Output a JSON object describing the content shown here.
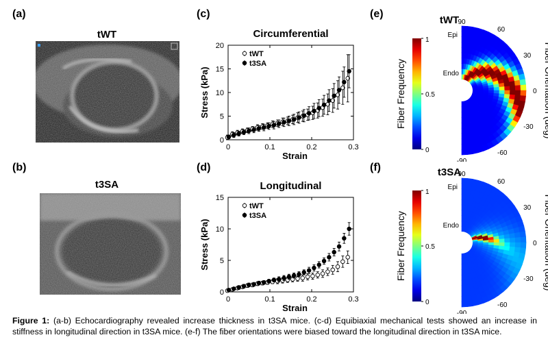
{
  "panels": {
    "a": {
      "label": "(a)",
      "title": "tWT"
    },
    "b": {
      "label": "(b)",
      "title": "t3SA"
    },
    "c": {
      "label": "(c)"
    },
    "d": {
      "label": "(d)"
    },
    "e": {
      "label": "(e)",
      "title": "tWT"
    },
    "f": {
      "label": "(f)",
      "title": "t3SA"
    }
  },
  "polar": {
    "cbar_label": "Fiber Frequency",
    "cbar_ticks": [
      "1",
      "0.5",
      "0"
    ],
    "angle_label": "Fiber Orientation (deg)",
    "angle_ticks": [
      "90",
      "60",
      "30",
      "0",
      "-30",
      "-60",
      "-90"
    ],
    "epi": "Epi",
    "endo": "Endo"
  },
  "caption": {
    "heading": "Figure 1:",
    "text": " (a-b) Echocardiography revealed increase thickness in t3SA mice. (c-d) Equibiaxial mechanical tests showed an increase in stiffness in longitudinal direction in t3SA mice. (e-f) The fiber orientations were biased toward the longitudinal direction in t3SA mice."
  },
  "colors": {
    "wt_marker": "#ffffff",
    "sa_marker": "#000000",
    "error_bar": "#000000"
  },
  "chart_data": [
    {
      "type": "scatter",
      "title": "Circumferential",
      "xlabel": "Strain",
      "ylabel": "Stress (kPa)",
      "xlim": [
        0,
        0.3
      ],
      "ylim": [
        0,
        20
      ],
      "xticks": [
        "0",
        "0.1",
        "0.2",
        "0.3"
      ],
      "yticks": [
        "0",
        "5",
        "10",
        "15",
        "20"
      ],
      "legend_position": "top-left",
      "x": [
        0.0,
        0.012,
        0.024,
        0.036,
        0.048,
        0.06,
        0.072,
        0.084,
        0.096,
        0.108,
        0.12,
        0.132,
        0.144,
        0.156,
        0.168,
        0.18,
        0.192,
        0.204,
        0.216,
        0.228,
        0.24,
        0.252,
        0.264,
        0.276,
        0.288
      ],
      "series": [
        {
          "name": "tWT",
          "marker": "open-circle",
          "values": [
            0.5,
            1.2,
            1.5,
            1.8,
            2.0,
            2.3,
            2.6,
            2.8,
            3.0,
            3.3,
            3.5,
            3.8,
            4.0,
            4.3,
            4.7,
            5.0,
            5.3,
            5.7,
            6.2,
            6.8,
            7.5,
            8.3,
            9.5,
            11.0,
            13.0
          ],
          "errors": [
            0.5,
            0.5,
            0.5,
            0.5,
            0.5,
            0.5,
            0.6,
            0.6,
            0.6,
            0.7,
            0.7,
            0.8,
            0.8,
            0.9,
            1.0,
            1.1,
            1.2,
            1.4,
            1.6,
            1.8,
            2.2,
            2.5,
            3.0,
            3.5,
            5.0
          ]
        },
        {
          "name": "t3SA",
          "marker": "filled-circle",
          "values": [
            0.6,
            1.0,
            1.3,
            1.6,
            1.9,
            2.1,
            2.4,
            2.6,
            2.9,
            3.1,
            3.4,
            3.7,
            4.0,
            4.3,
            4.7,
            5.1,
            5.6,
            6.1,
            6.7,
            7.4,
            8.3,
            9.3,
            10.5,
            12.2,
            14.5
          ],
          "errors": [
            0.4,
            0.5,
            0.5,
            0.5,
            0.6,
            0.6,
            0.6,
            0.7,
            0.7,
            0.8,
            0.8,
            0.9,
            1.0,
            1.1,
            1.2,
            1.3,
            1.4,
            1.6,
            1.8,
            2.0,
            2.3,
            2.6,
            2.8,
            3.2,
            3.5
          ]
        }
      ]
    },
    {
      "type": "scatter",
      "title": "Longitudinal",
      "xlabel": "Strain",
      "ylabel": "Stress (kPa)",
      "xlim": [
        0,
        0.3
      ],
      "ylim": [
        0,
        15
      ],
      "xticks": [
        "0",
        "0.1",
        "0.2",
        "0.3"
      ],
      "yticks": [
        "0",
        "5",
        "10",
        "15"
      ],
      "legend_position": "top-left",
      "x": [
        0.0,
        0.012,
        0.024,
        0.036,
        0.048,
        0.06,
        0.072,
        0.084,
        0.096,
        0.108,
        0.12,
        0.132,
        0.144,
        0.156,
        0.168,
        0.18,
        0.192,
        0.204,
        0.216,
        0.228,
        0.24,
        0.252,
        0.264,
        0.276,
        0.288
      ],
      "series": [
        {
          "name": "tWT",
          "marker": "open-circle",
          "values": [
            0.2,
            0.4,
            0.6,
            0.8,
            1.0,
            1.1,
            1.3,
            1.4,
            1.5,
            1.6,
            1.7,
            1.8,
            1.9,
            2.0,
            2.1,
            2.2,
            2.4,
            2.5,
            2.7,
            2.9,
            3.2,
            3.5,
            4.0,
            4.8,
            5.5
          ],
          "errors": [
            0.2,
            0.2,
            0.2,
            0.2,
            0.3,
            0.3,
            0.3,
            0.3,
            0.3,
            0.3,
            0.4,
            0.4,
            0.4,
            0.4,
            0.4,
            0.5,
            0.5,
            0.5,
            0.5,
            0.6,
            0.6,
            0.7,
            0.8,
            0.9,
            1.0
          ]
        },
        {
          "name": "t3SA",
          "marker": "filled-circle",
          "values": [
            0.3,
            0.5,
            0.7,
            0.9,
            1.1,
            1.2,
            1.4,
            1.5,
            1.7,
            1.9,
            2.0,
            2.2,
            2.4,
            2.6,
            2.8,
            3.1,
            3.4,
            3.8,
            4.3,
            4.9,
            5.5,
            6.3,
            7.2,
            8.5,
            10.0
          ],
          "errors": [
            0.2,
            0.2,
            0.3,
            0.3,
            0.3,
            0.3,
            0.3,
            0.3,
            0.3,
            0.3,
            0.4,
            0.4,
            0.4,
            0.4,
            0.4,
            0.4,
            0.5,
            0.5,
            0.5,
            0.5,
            0.6,
            0.6,
            0.7,
            0.8,
            1.0
          ]
        }
      ]
    }
  ]
}
